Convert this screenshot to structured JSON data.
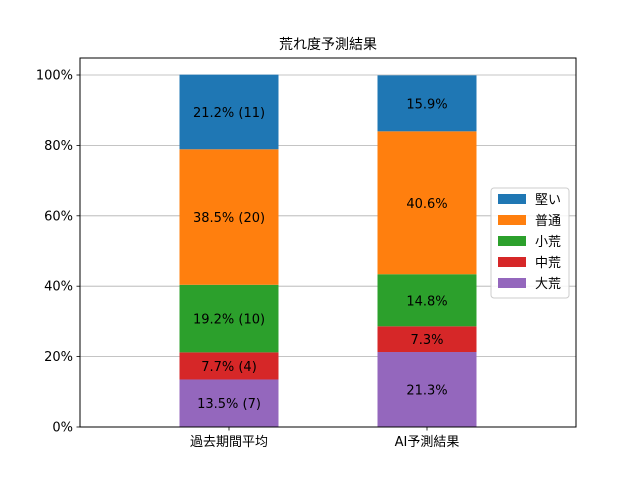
{
  "chart_data": {
    "type": "bar",
    "stacked": true,
    "title": "荒れ度予測結果",
    "xlabel": "",
    "ylabel": "",
    "ylim": [
      0,
      100
    ],
    "y_ticks": [
      "0%",
      "20%",
      "40%",
      "60%",
      "80%",
      "100%"
    ],
    "y_tick_values": [
      0,
      20,
      40,
      60,
      80,
      100
    ],
    "grid": "y",
    "legend_position": "right",
    "categories": [
      "過去期間平均",
      "AI予測結果"
    ],
    "series": [
      {
        "name": "大荒",
        "color": "#9467bd",
        "values": [
          13.5,
          21.3
        ],
        "labels": [
          "13.5% (7)",
          "21.3%"
        ]
      },
      {
        "name": "中荒",
        "color": "#d62728",
        "values": [
          7.7,
          7.3
        ],
        "labels": [
          "7.7% (4)",
          "7.3%"
        ]
      },
      {
        "name": "小荒",
        "color": "#2ca02c",
        "values": [
          19.2,
          14.8
        ],
        "labels": [
          "19.2% (10)",
          "14.8%"
        ]
      },
      {
        "name": "普通",
        "color": "#ff7f0e",
        "values": [
          38.5,
          40.6
        ],
        "labels": [
          "38.5% (20)",
          "40.6%"
        ]
      },
      {
        "name": "堅い",
        "color": "#1f77b4",
        "values": [
          21.2,
          15.9
        ],
        "labels": [
          "21.2% (11)",
          "15.9%"
        ]
      }
    ],
    "legend_order": [
      "堅い",
      "普通",
      "小荒",
      "中荒",
      "大荒"
    ]
  }
}
